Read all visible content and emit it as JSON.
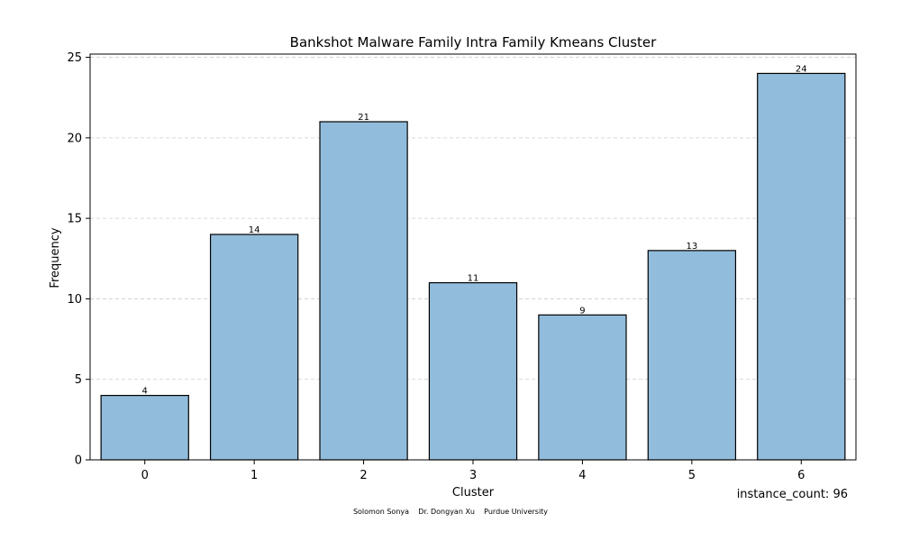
{
  "chart_data": {
    "type": "bar",
    "title": "Bankshot Malware Family Intra Family Kmeans Cluster",
    "xlabel": "Cluster",
    "ylabel": "Frequency",
    "categories": [
      "0",
      "1",
      "2",
      "3",
      "4",
      "5",
      "6"
    ],
    "values": [
      4,
      14,
      21,
      11,
      9,
      13,
      24
    ],
    "ylim": [
      0,
      25.2
    ],
    "yticks": [
      0,
      5,
      10,
      15,
      20,
      25
    ],
    "grid": "y-dashed",
    "bar_color": "#92bcdb",
    "bar_edge_color": "#000000",
    "grid_color": "#cccccc"
  },
  "annotations": {
    "instance_count": "instance_count: 96",
    "credits": "Solomon Sonya    Dr. Dongyan Xu    Purdue University"
  }
}
